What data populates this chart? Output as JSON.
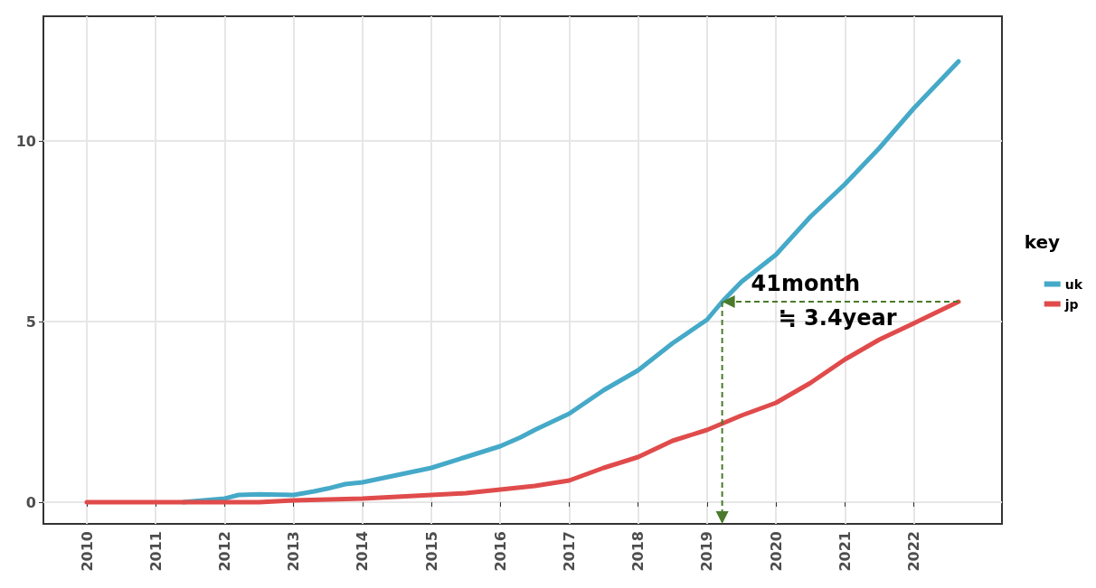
{
  "chart_data": {
    "type": "line",
    "legend_title": "key",
    "legend": "right",
    "grid": true,
    "xlim": [
      2009.37,
      2023.28
    ],
    "xticks": [
      2010,
      2011,
      2012,
      2013,
      2014,
      2015,
      2016,
      2017,
      2018,
      2019,
      2020,
      2021,
      2022
    ],
    "ylim": [
      -0.6,
      13.45
    ],
    "yticks": [
      0,
      5,
      10
    ],
    "annotations": [
      {
        "text": "41month",
        "x": 2019.22,
        "y": 5.55
      },
      "≒ 3.4year"
    ],
    "series": [
      {
        "name": "uk",
        "color": "#45a9c8",
        "x": [
          2011.4,
          2011.5,
          2012,
          2012.2,
          2012.5,
          2013,
          2013.3,
          2013.5,
          2013.75,
          2014,
          2014.5,
          2015,
          2015.5,
          2016,
          2016.3,
          2016.5,
          2017,
          2017.5,
          2018,
          2018.5,
          2019,
          2019.22,
          2019.5,
          2020,
          2020.5,
          2021,
          2021.5,
          2022,
          2022.3,
          2022.65
        ],
        "values": [
          0,
          0.02,
          0.1,
          0.2,
          0.22,
          0.2,
          0.3,
          0.38,
          0.5,
          0.55,
          0.75,
          0.95,
          1.25,
          1.55,
          1.8,
          2.0,
          2.45,
          3.1,
          3.65,
          4.4,
          5.05,
          5.55,
          6.1,
          6.85,
          7.9,
          8.8,
          9.8,
          10.9,
          11.5,
          12.2
        ]
      },
      {
        "name": "jp",
        "color": "#e04b4b",
        "x": [
          2010,
          2011,
          2012,
          2012.5,
          2013,
          2014,
          2015,
          2015.5,
          2016,
          2016.5,
          2017,
          2017.5,
          2018,
          2018.5,
          2019,
          2019.5,
          2020,
          2020.5,
          2021,
          2021.5,
          2022,
          2022.65
        ],
        "values": [
          0,
          0,
          0,
          0,
          0.05,
          0.1,
          0.2,
          0.25,
          0.35,
          0.45,
          0.6,
          0.95,
          1.25,
          1.7,
          2.0,
          2.4,
          2.75,
          3.3,
          3.95,
          4.5,
          4.95,
          5.55
        ]
      }
    ]
  }
}
